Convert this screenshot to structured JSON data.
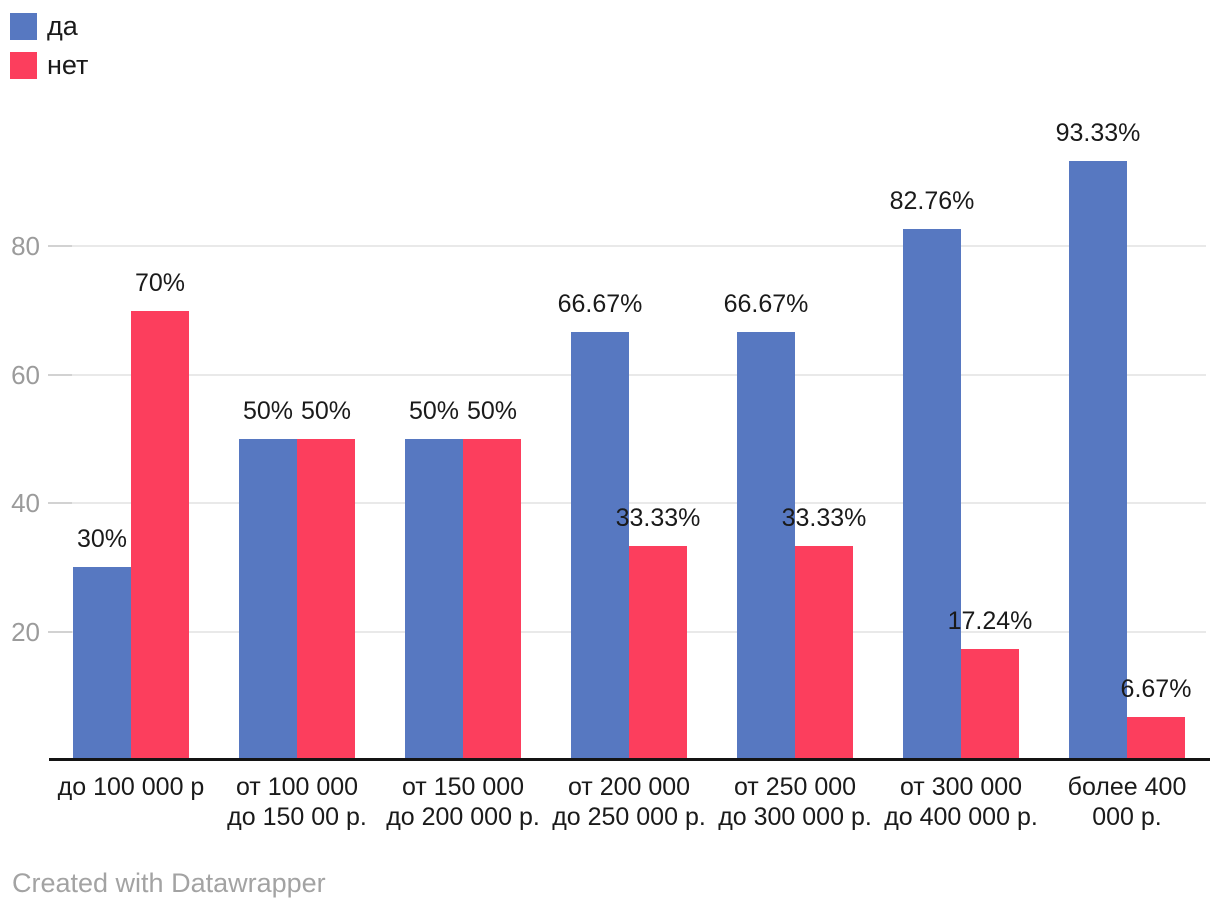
{
  "chart_data": {
    "type": "bar",
    "title": "",
    "xlabel": "",
    "ylabel": "",
    "ylim": [
      0,
      100
    ],
    "grid": true,
    "legend_position": "top-left",
    "y_ticks": [
      20,
      40,
      60,
      80
    ],
    "categories": [
      "до 100 000 р",
      "от 100 000\nдо 150 00 р.",
      "от 150 000\nдо 200 000 р.",
      "от 200 000\nдо 250 000 р.",
      "от 250 000\nдо 300 000 р.",
      "от 300 000\nдо 400 000 р.",
      "более 400\n000 р."
    ],
    "series": [
      {
        "name": "да",
        "color": "#5778c1",
        "values": [
          30,
          50,
          50,
          66.67,
          66.67,
          82.76,
          93.33
        ],
        "labels": [
          "30%",
          "50%",
          "50%",
          "66.67%",
          "66.67%",
          "82.76%",
          "93.33%"
        ]
      },
      {
        "name": "нет",
        "color": "#fc3e5d",
        "values": [
          70,
          50,
          50,
          33.33,
          33.33,
          17.24,
          6.67
        ],
        "labels": [
          "70%",
          "50%",
          "50%",
          "33.33%",
          "33.33%",
          "17.24%",
          "6.67%"
        ]
      }
    ]
  },
  "footer": {
    "attribution": "Created with Datawrapper"
  }
}
